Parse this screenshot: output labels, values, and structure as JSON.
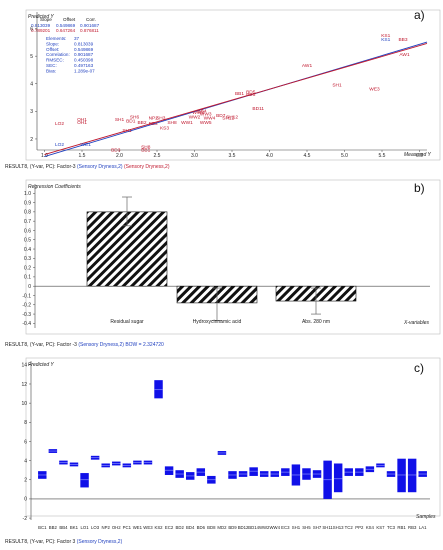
{
  "chart_data": [
    {
      "type": "scatter",
      "panel_label": "a)",
      "ylabel": "Predicted Y",
      "xlabel": "Measured Y",
      "xlim": [
        0.9,
        6.1
      ],
      "ylim": [
        1.6,
        6.6
      ],
      "x_ticks": [
        "1.0",
        "1.5",
        "2.0",
        "2.5",
        "3.0",
        "3.5",
        "4.0",
        "4.5",
        "5.0",
        "5.5",
        "6.0"
      ],
      "x_tick_values": [
        1.0,
        1.5,
        2.0,
        2.5,
        3.0,
        3.5,
        4.0,
        4.5,
        5.0,
        5.5,
        6.0
      ],
      "y_ticks": [
        "2",
        "3",
        "4",
        "5",
        "6"
      ],
      "y_tick_values": [
        2,
        3,
        4,
        5,
        6
      ],
      "stats_table": {
        "headers": [
          "Slope",
          "Offset",
          "Corr."
        ],
        "rows": [
          [
            "0.813039",
            "0.549869",
            "0.901687"
          ],
          [
            "0.789201",
            "0.647264",
            "0.876811"
          ]
        ],
        "colors": [
          "#1f3fbf",
          "#c0182e"
        ]
      },
      "stats_block": [
        {
          "label": "Elements:",
          "value": "37"
        },
        {
          "label": "Slope:",
          "value": "0.813039"
        },
        {
          "label": "Offset:",
          "value": "0.549869"
        },
        {
          "label": "Correlation:",
          "value": "0.901687"
        },
        {
          "label": "RMSEC:",
          "value": "0.450398"
        },
        {
          "label": "SEC:",
          "value": "0.497163"
        },
        {
          "label": "Bias:",
          "value": "1.289e-07"
        }
      ],
      "fit_lines": [
        {
          "slope": 0.813039,
          "offset": 0.549869,
          "color": "#1f3fbf"
        },
        {
          "slope": 0.789201,
          "offset": 0.647264,
          "color": "#c0182e"
        }
      ],
      "points": [
        {
          "label": "KS1",
          "x": 5.55,
          "y": 5.7
        },
        {
          "label": "KS1",
          "x": 5.55,
          "y": 5.55
        },
        {
          "label": "BB3",
          "x": 5.78,
          "y": 5.55
        },
        {
          "label": "AW1",
          "x": 5.8,
          "y": 5.0
        },
        {
          "label": "AW1",
          "x": 4.5,
          "y": 4.6
        },
        {
          "label": "SH1",
          "x": 4.9,
          "y": 3.9
        },
        {
          "label": "WE3",
          "x": 5.4,
          "y": 3.75
        },
        {
          "label": "OH1",
          "x": 1.5,
          "y": 2.65
        },
        {
          "label": "OH1",
          "x": 1.5,
          "y": 2.55
        },
        {
          "label": "LO2",
          "x": 1.2,
          "y": 2.5
        },
        {
          "label": "LO2",
          "x": 1.2,
          "y": 1.75
        },
        {
          "label": "WE1",
          "x": 1.55,
          "y": 1.75
        },
        {
          "label": "BB1",
          "x": 3.6,
          "y": 3.6
        },
        {
          "label": "BD5",
          "x": 3.75,
          "y": 3.65
        },
        {
          "label": "BD5",
          "x": 3.75,
          "y": 3.55
        },
        {
          "label": "BD11",
          "x": 3.85,
          "y": 3.05
        },
        {
          "label": "SH12",
          "x": 3.5,
          "y": 2.75
        },
        {
          "label": "SH12",
          "x": 3.45,
          "y": 2.7
        },
        {
          "label": "BB4",
          "x": 3.1,
          "y": 2.95
        },
        {
          "label": "WW3",
          "x": 3.05,
          "y": 2.9
        },
        {
          "label": "WW3",
          "x": 3.15,
          "y": 2.85
        },
        {
          "label": "WW4",
          "x": 3.2,
          "y": 2.7
        },
        {
          "label": "BD7",
          "x": 3.35,
          "y": 2.8
        },
        {
          "label": "WW2",
          "x": 3.0,
          "y": 2.75
        },
        {
          "label": "WW1",
          "x": 2.9,
          "y": 2.55
        },
        {
          "label": "WW5",
          "x": 3.15,
          "y": 2.55
        },
        {
          "label": "SH8",
          "x": 2.7,
          "y": 2.55
        },
        {
          "label": "NP2",
          "x": 2.45,
          "y": 2.7
        },
        {
          "label": "SH3",
          "x": 2.55,
          "y": 2.7
        },
        {
          "label": "SH6",
          "x": 2.2,
          "y": 2.75
        },
        {
          "label": "BD1",
          "x": 2.15,
          "y": 2.6
        },
        {
          "label": "SH1",
          "x": 2.0,
          "y": 2.65
        },
        {
          "label": "SH1",
          "x": 2.1,
          "y": 2.25
        },
        {
          "label": "KS3",
          "x": 2.6,
          "y": 2.35
        },
        {
          "label": "BB2",
          "x": 2.3,
          "y": 2.55
        },
        {
          "label": "BB2",
          "x": 2.45,
          "y": 2.5
        },
        {
          "label": "BD3",
          "x": 1.95,
          "y": 1.55
        },
        {
          "label": "SH8",
          "x": 2.35,
          "y": 1.65
        },
        {
          "label": "BB1",
          "x": 2.35,
          "y": 1.55
        }
      ],
      "label_color": "#c0182e",
      "footer": {
        "prefix": "RESULT8, (Y-var, PC): Factor-3",
        "items": [
          {
            "text": "(Sensory Dryness,2)",
            "color": "#1f3fbf"
          },
          {
            "text": "(Sensory Dryness,2)",
            "color": "#c0182e"
          }
        ]
      }
    },
    {
      "type": "bar",
      "panel_label": "b)",
      "ylabel": "Regression Coefficients",
      "xlabel": "X-variables",
      "ylim": [
        -0.45,
        1.1
      ],
      "y_ticks": [
        "-0.4",
        "-0.3",
        "-0.2",
        "-0.1",
        "0",
        "0.1",
        "0.2",
        "0.3",
        "0.4",
        "0.5",
        "0.6",
        "0.7",
        "0.8",
        "0.9",
        "1.0"
      ],
      "y_tick_values": [
        -0.4,
        -0.3,
        -0.2,
        -0.1,
        0,
        0.1,
        0.2,
        0.3,
        0.4,
        0.5,
        0.6,
        0.7,
        0.8,
        0.9,
        1.0
      ],
      "categories": [
        "Residual sugar",
        "Hydroxycinnamic acid",
        "Abs. 280 nm"
      ],
      "values": [
        0.8,
        -0.18,
        -0.16
      ],
      "error_low": [
        0.65,
        -0.37,
        -0.3
      ],
      "error_high": [
        0.96,
        -0.02,
        -0.02
      ],
      "footer": {
        "prefix": "RESULT8, (Y-var, PC): Factor -3",
        "items": [
          {
            "text": "(Sensory Dryness,2) BOW = 2.324720",
            "color": "#1f3fbf"
          }
        ]
      }
    },
    {
      "type": "bar",
      "panel_label": "c)",
      "ylabel": "Predicted Y",
      "xlabel": "Samples",
      "ylim": [
        -2.2,
        14.4
      ],
      "y_ticks": [
        "-2",
        "0",
        "2",
        "4",
        "6",
        "8",
        "10",
        "12",
        "14"
      ],
      "y_tick_values": [
        -2,
        0,
        2,
        4,
        6,
        8,
        10,
        12,
        14
      ],
      "bar_color": "#1010e8",
      "categories": [
        "BC1",
        "BB2",
        "BB4",
        "BK1",
        "LO1",
        "LO3",
        "NP2",
        "OH2",
        "PC1",
        "WE1",
        "WE3",
        "KS2",
        "EC2",
        "BD2",
        "BD4",
        "BD6",
        "BD8",
        "MD2",
        "BD9",
        "BD12",
        "BD14",
        "WW2",
        "WW4",
        "EC3",
        "SH1",
        "SH5",
        "SH7",
        "SH11",
        "SH13",
        "TC2",
        "PP2",
        "KS4",
        "KS7",
        "TC3",
        "RB1",
        "RB3",
        "LA1"
      ],
      "x_ticks": [
        "BC1",
        "BB2",
        "BB4",
        "BK1",
        "LO1",
        "LO3",
        "NP2",
        "OH2",
        "PC1",
        "WE1",
        "WE3",
        "KS2",
        "EC2",
        "BD2",
        "BD4",
        "BD6",
        "BD8",
        "MD2",
        "BD9",
        "BD12",
        "BD14",
        "WW2",
        "WW4",
        "EC3",
        "SH1",
        "SH5",
        "SH7",
        "SH11",
        "SH13",
        "TC2",
        "PP2",
        "KS4",
        "KS7",
        "TC3",
        "RB1",
        "RB3",
        "LA1"
      ],
      "values": [
        2.5,
        5.0,
        3.8,
        3.6,
        2.0,
        4.3,
        3.5,
        3.7,
        3.5,
        3.8,
        3.8,
        11.4,
        3.0,
        2.6,
        2.4,
        2.8,
        2.0,
        4.8,
        2.5,
        2.6,
        2.9,
        2.6,
        2.6,
        2.8,
        2.5,
        2.6,
        2.6,
        2.0,
        2.1,
        2.8,
        2.8,
        3.1,
        3.5,
        2.6,
        2.5,
        2.5,
        2.6
      ],
      "lower": [
        2.1,
        4.8,
        3.6,
        3.4,
        1.2,
        4.1,
        3.3,
        3.5,
        3.3,
        3.6,
        3.6,
        10.5,
        2.5,
        2.2,
        2.0,
        2.4,
        1.6,
        4.6,
        2.1,
        2.3,
        2.4,
        2.3,
        2.3,
        2.4,
        1.4,
        2.0,
        2.2,
        0.0,
        0.7,
        2.4,
        2.4,
        2.8,
        3.3,
        2.3,
        0.7,
        0.7,
        2.3
      ],
      "upper": [
        2.9,
        5.2,
        4.0,
        3.8,
        2.7,
        4.5,
        3.7,
        3.9,
        3.7,
        4.0,
        4.0,
        12.4,
        3.4,
        3.0,
        2.8,
        3.2,
        2.4,
        5.0,
        2.9,
        2.9,
        3.3,
        2.9,
        2.9,
        3.2,
        3.6,
        3.2,
        3.0,
        4.0,
        3.7,
        3.2,
        3.2,
        3.4,
        3.7,
        2.9,
        4.2,
        4.2,
        2.9
      ],
      "footer": {
        "prefix": "RESULT8, (Y-var, PC): Factor 3",
        "items": [
          {
            "text": "(Sensory Dryness,2)",
            "color": "#1f3fbf"
          }
        ]
      }
    }
  ]
}
